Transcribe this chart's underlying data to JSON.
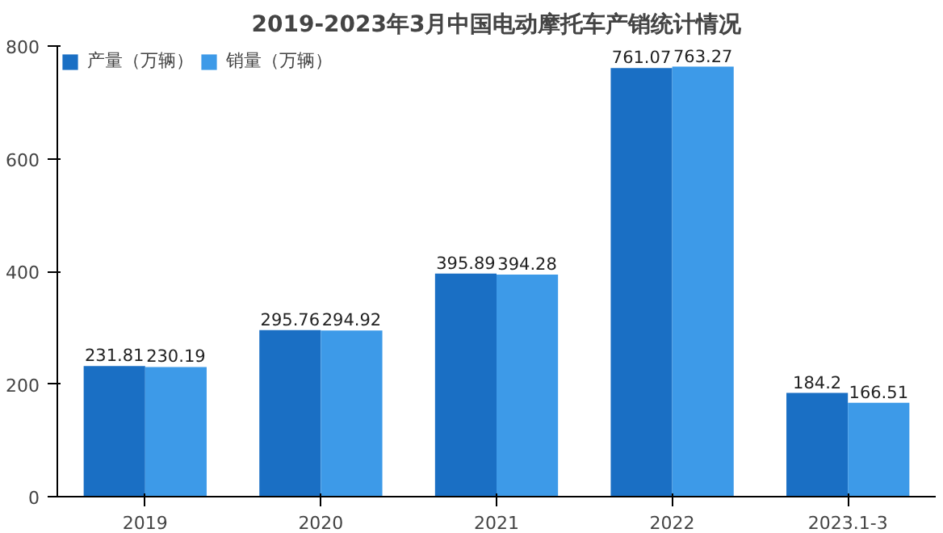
{
  "chart_data": {
    "type": "bar",
    "title": "2019-2023年3月中国电动摩托车产销统计情况",
    "categories": [
      "2019",
      "2020",
      "2021",
      "2022",
      "2023.1-3"
    ],
    "series": [
      {
        "name": "产量（万辆）",
        "color": "#1a6fc4",
        "values": [
          231.81,
          295.76,
          395.89,
          761.07,
          184.2
        ]
      },
      {
        "name": "销量（万辆）",
        "color": "#3d9ae8",
        "values": [
          230.19,
          294.92,
          394.28,
          763.27,
          166.51
        ]
      }
    ],
    "ylim": [
      0,
      800
    ],
    "yticks": [
      0,
      200,
      400,
      600,
      800
    ],
    "grid": false,
    "legend": "top left",
    "data_labels": true
  }
}
